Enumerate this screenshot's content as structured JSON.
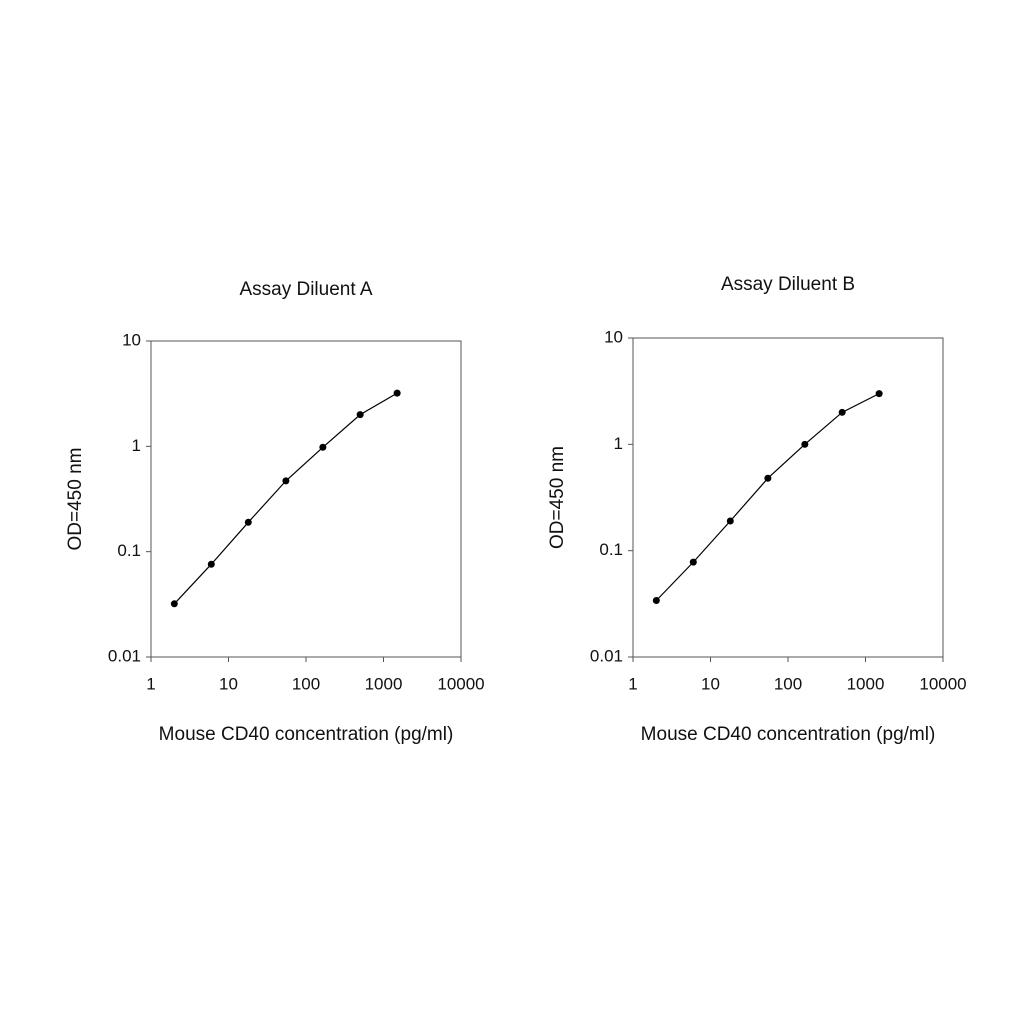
{
  "chart_data": [
    {
      "type": "line",
      "title": "Assay Diluent A",
      "x_label": "Mouse CD40 concentration (pg/ml)",
      "y_label": "OD=450 nm",
      "x": [
        2,
        6,
        18,
        55,
        165,
        500,
        1500
      ],
      "series": [
        {
          "color": "#000000",
          "values": [
            0.032,
            0.076,
            0.19,
            0.47,
            0.98,
            2.0,
            3.2
          ]
        }
      ],
      "xlim": [
        1,
        10000
      ],
      "xticks": [
        1,
        10,
        100,
        1000,
        10000
      ],
      "ylim": [
        0.01,
        10
      ],
      "yticks": [
        0.01,
        0.1,
        1,
        10
      ],
      "log_x": true,
      "log_y": true
    },
    {
      "type": "line",
      "title": "Assay Diluent B",
      "x_label": "Mouse CD40 concentration (pg/ml)",
      "y_label": "OD=450 nm",
      "x": [
        2,
        6,
        18,
        55,
        165,
        500,
        1500
      ],
      "series": [
        {
          "color": "#000000",
          "values": [
            0.034,
            0.078,
            0.19,
            0.48,
            1.0,
            2.0,
            3.0
          ]
        }
      ],
      "xlim": [
        1,
        10000
      ],
      "xticks": [
        1,
        10,
        100,
        1000,
        10000
      ],
      "ylim": [
        0.01,
        10
      ],
      "yticks": [
        0.01,
        0.1,
        1,
        10
      ],
      "log_x": true,
      "log_y": true
    }
  ]
}
